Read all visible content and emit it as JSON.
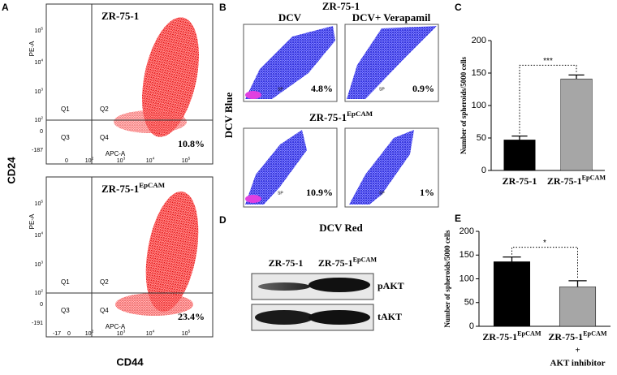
{
  "panel_a": {
    "label": "A",
    "y_label": "CD24",
    "x_label": "CD44",
    "plots": [
      {
        "title": {
          "text": "ZR-75-1"
        },
        "y_axis": "PE-A",
        "x_axis": "APC-A",
        "quadrants": [
          "Q1",
          "Q2",
          "Q3",
          "Q4"
        ],
        "percent": "10.8%",
        "yticks": [
          {
            "text": "10",
            "sup": "5"
          },
          {
            "text": "10",
            "sup": "4"
          },
          {
            "text": "10",
            "sup": "3"
          },
          {
            "text": "10",
            "sup": "2"
          },
          {
            "text": "0"
          },
          {
            "text": "-187"
          }
        ],
        "xticks": [
          {
            "text": "0"
          },
          {
            "text": "10",
            "sup": "2"
          },
          {
            "text": "10",
            "sup": "3"
          },
          {
            "text": "10",
            "sup": "4"
          },
          {
            "text": "10",
            "sup": "5"
          }
        ]
      },
      {
        "title": {
          "text": "ZR-75-1",
          "sup": "EpCAM"
        },
        "y_axis": "PE-A",
        "x_axis": "APC-A",
        "quadrants": [
          "Q1",
          "Q2",
          "Q3",
          "Q4"
        ],
        "percent": "23.4%",
        "yticks": [
          {
            "text": "10",
            "sup": "5"
          },
          {
            "text": "10",
            "sup": "4"
          },
          {
            "text": "10",
            "sup": "3"
          },
          {
            "text": "10",
            "sup": "2"
          },
          {
            "text": "0"
          },
          {
            "text": "-191"
          }
        ],
        "xticks": [
          {
            "text": "-17"
          },
          {
            "text": "0"
          },
          {
            "text": "10",
            "sup": "2"
          },
          {
            "text": "10",
            "sup": "3"
          },
          {
            "text": "10",
            "sup": "4"
          },
          {
            "text": "10",
            "sup": "5"
          }
        ]
      }
    ]
  },
  "panel_b": {
    "label": "B",
    "title": "ZR-75-1",
    "columns": [
      "DCV",
      "DCV+ Verapamil"
    ],
    "row_title": {
      "text": "ZR-75-1",
      "sup": "EpCAM"
    },
    "y_label": "DCV Blue",
    "x_label": "DCV Red",
    "gate": "SP",
    "percents": [
      "4.8%",
      "0.9%",
      "10.9%",
      "1%"
    ]
  },
  "panel_d": {
    "label": "D",
    "lanes": [
      {
        "text": "ZR-75-1"
      },
      {
        "text": "ZR-75-1",
        "sup": "EpCAM"
      }
    ],
    "bands": [
      "pAKT",
      "tAKT"
    ]
  },
  "chart_data": [
    {
      "type": "bar",
      "panel": "C",
      "y_label": "Number of spheroids/5000 cells",
      "categories": [
        {
          "text": "ZR-75-1"
        },
        {
          "text": "ZR-75-1",
          "sup": "EpCAM"
        }
      ],
      "values": [
        47,
        141
      ],
      "errors": [
        6,
        6
      ],
      "colors": [
        "#000000",
        "#a6a6a6"
      ],
      "ylim": [
        0,
        200
      ],
      "yticks": [
        0,
        50,
        100,
        150,
        200
      ],
      "significance": "***"
    },
    {
      "type": "bar",
      "panel": "E",
      "y_label": "Number of spheroids/5000 cells",
      "categories": [
        {
          "text": "ZR-75-1",
          "sup": "EpCAM"
        },
        {
          "text": "ZR-75-1",
          "sup": "EpCAM",
          "lines": [
            "+",
            "AKT inhibitor"
          ]
        }
      ],
      "values": [
        136,
        83
      ],
      "errors": [
        10,
        13
      ],
      "colors": [
        "#000000",
        "#a6a6a6"
      ],
      "ylim": [
        0,
        200
      ],
      "yticks": [
        0,
        50,
        100,
        150,
        200
      ],
      "significance": "*"
    }
  ]
}
